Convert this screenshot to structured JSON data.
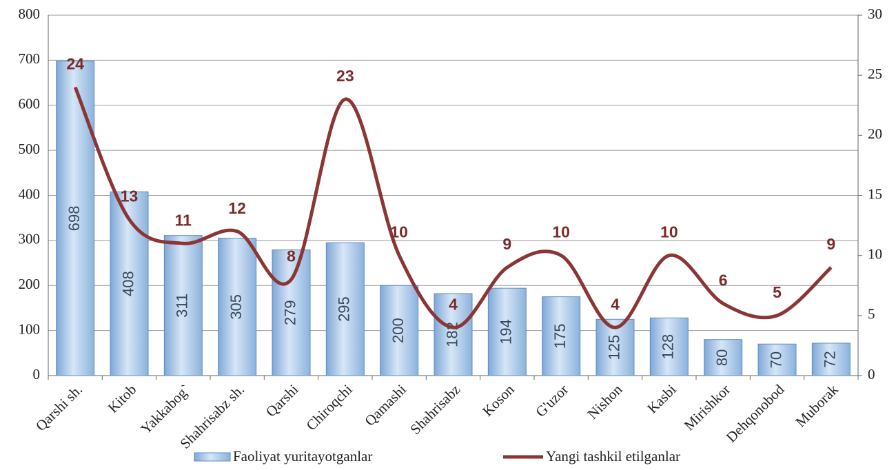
{
  "chart_data": {
    "type": "bar",
    "categories": [
      "Qarshi sh.",
      "Kitob",
      "Yakkabog`",
      "Shahrisabz sh.",
      "Qarshi",
      "Chiroqchi",
      "Qamashi",
      "Shahrisabz",
      "Koson",
      "G'uzor",
      "Nishon",
      "Kasbi",
      "Mirishkor",
      "Dehqonobod",
      "Muborak"
    ],
    "series": [
      {
        "name": "Faoliyat yuritayotganlar",
        "type": "bar",
        "color": "#9dc3e6",
        "values": [
          698,
          408,
          311,
          305,
          279,
          295,
          200,
          182,
          194,
          175,
          125,
          128,
          80,
          70,
          72
        ]
      },
      {
        "name": "Yangi tashkil etilganlar",
        "type": "line",
        "axis": "y2",
        "color": "#8b3535",
        "values": [
          24,
          13,
          11,
          12,
          8,
          23,
          10,
          4,
          9,
          10,
          4,
          10,
          6,
          5,
          9
        ]
      }
    ],
    "ylim": [
      0,
      800
    ],
    "yticks": [
      0,
      100,
      200,
      300,
      400,
      500,
      600,
      700,
      800
    ],
    "y2lim": [
      0,
      30
    ],
    "y2ticks": [
      0,
      5,
      10,
      15,
      20,
      25,
      30
    ],
    "grid": true
  }
}
